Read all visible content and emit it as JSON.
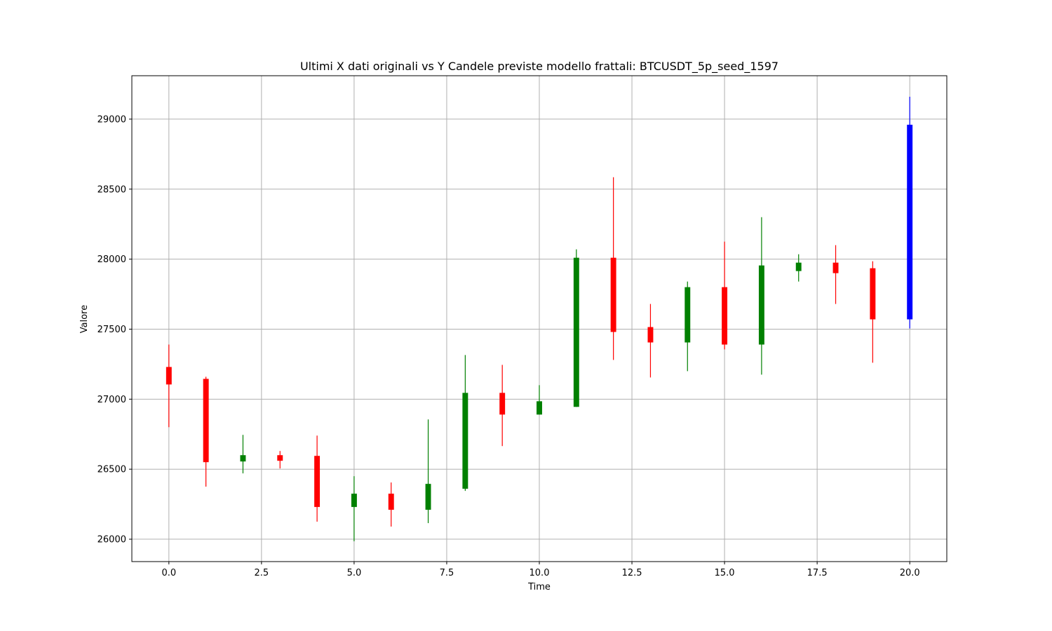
{
  "chart_data": {
    "type": "candlestick",
    "title": "Ultimi X dati originali vs Y Candele previste modello frattali: BTCUSDT_5p_seed_1597",
    "xlabel": "Time",
    "ylabel": "Valore",
    "xlim": [
      -1.0,
      21.0
    ],
    "ylim": [
      25840,
      29310
    ],
    "x_ticks": [
      0.0,
      2.5,
      5.0,
      7.5,
      10.0,
      12.5,
      15.0,
      17.5,
      20.0
    ],
    "x_tick_labels": [
      "0.0",
      "2.5",
      "5.0",
      "7.5",
      "10.0",
      "12.5",
      "15.0",
      "17.5",
      "20.0"
    ],
    "y_ticks": [
      26000,
      26500,
      27000,
      27500,
      28000,
      28500,
      29000
    ],
    "y_tick_labels": [
      "26000",
      "26500",
      "27000",
      "27500",
      "28000",
      "28500",
      "29000"
    ],
    "grid": true,
    "colors": {
      "up": "#008000",
      "down": "#ff0000",
      "forecast": "#0000ff"
    },
    "candles": [
      {
        "t": 0,
        "open": 27230,
        "close": 27105,
        "high": 27390,
        "low": 26800,
        "color": "down"
      },
      {
        "t": 1,
        "open": 27145,
        "close": 26550,
        "high": 27160,
        "low": 26375,
        "color": "down"
      },
      {
        "t": 2,
        "open": 26555,
        "close": 26600,
        "high": 26745,
        "low": 26470,
        "color": "up"
      },
      {
        "t": 3,
        "open": 26600,
        "close": 26560,
        "high": 26630,
        "low": 26505,
        "color": "down"
      },
      {
        "t": 4,
        "open": 26595,
        "close": 26230,
        "high": 26740,
        "low": 26125,
        "color": "down"
      },
      {
        "t": 5,
        "open": 26230,
        "close": 26325,
        "high": 26450,
        "low": 25985,
        "color": "up"
      },
      {
        "t": 6,
        "open": 26325,
        "close": 26210,
        "high": 26405,
        "low": 26090,
        "color": "down"
      },
      {
        "t": 7,
        "open": 26210,
        "close": 26395,
        "high": 26855,
        "low": 26115,
        "color": "up"
      },
      {
        "t": 8,
        "open": 26360,
        "close": 27045,
        "high": 27315,
        "low": 26345,
        "color": "up"
      },
      {
        "t": 9,
        "open": 27045,
        "close": 26890,
        "high": 27245,
        "low": 26665,
        "color": "down"
      },
      {
        "t": 10,
        "open": 26890,
        "close": 26985,
        "high": 27100,
        "low": 26890,
        "color": "up"
      },
      {
        "t": 11,
        "open": 26945,
        "close": 28010,
        "high": 28070,
        "low": 26945,
        "color": "up"
      },
      {
        "t": 12,
        "open": 28010,
        "close": 27480,
        "high": 28585,
        "low": 27280,
        "color": "down"
      },
      {
        "t": 13,
        "open": 27515,
        "close": 27405,
        "high": 27680,
        "low": 27155,
        "color": "down"
      },
      {
        "t": 14,
        "open": 27405,
        "close": 27800,
        "high": 27840,
        "low": 27200,
        "color": "up"
      },
      {
        "t": 15,
        "open": 27800,
        "close": 27390,
        "high": 28125,
        "low": 27355,
        "color": "down"
      },
      {
        "t": 16,
        "open": 27390,
        "close": 27955,
        "high": 28300,
        "low": 27175,
        "color": "up"
      },
      {
        "t": 17,
        "open": 27915,
        "close": 27975,
        "high": 28035,
        "low": 27840,
        "color": "up"
      },
      {
        "t": 18,
        "open": 27975,
        "close": 27900,
        "high": 28100,
        "low": 27680,
        "color": "down"
      },
      {
        "t": 19,
        "open": 27935,
        "close": 27570,
        "high": 27985,
        "low": 27260,
        "color": "down"
      },
      {
        "t": 20,
        "open": 27570,
        "close": 28960,
        "high": 29160,
        "low": 27505,
        "color": "forecast"
      }
    ]
  }
}
